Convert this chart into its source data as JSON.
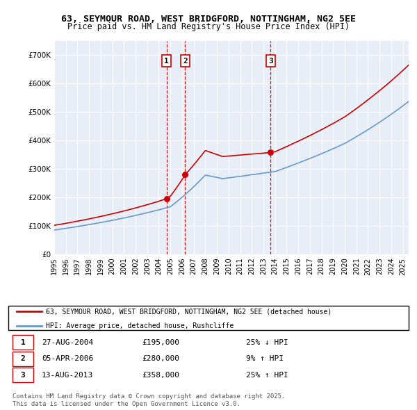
{
  "title_line1": "63, SEYMOUR ROAD, WEST BRIDGFORD, NOTTINGHAM, NG2 5EE",
  "title_line2": "Price paid vs. HM Land Registry's House Price Index (HPI)",
  "legend_label1": "63, SEYMOUR ROAD, WEST BRIDGFORD, NOTTINGHAM, NG2 5EE (detached house)",
  "legend_label2": "HPI: Average price, detached house, Rushcliffe",
  "footer": "Contains HM Land Registry data © Crown copyright and database right 2025.\nThis data is licensed under the Open Government Licence v3.0.",
  "sale_color": "#cc0000",
  "hpi_color": "#6699cc",
  "bg_color": "#e8eef8",
  "grid_color": "#ffffff",
  "sale_points": [
    {
      "date_num": 2004.66,
      "price": 195000,
      "label": "1"
    },
    {
      "date_num": 2006.27,
      "price": 280000,
      "label": "2"
    },
    {
      "date_num": 2013.62,
      "price": 358000,
      "label": "3"
    }
  ],
  "vline_dates": [
    2004.66,
    2006.27,
    2013.62
  ],
  "table_rows": [
    {
      "num": "1",
      "date": "27-AUG-2004",
      "price": "£195,000",
      "change": "25% ↓ HPI"
    },
    {
      "num": "2",
      "date": "05-APR-2006",
      "price": "£280,000",
      "change": "9% ↑ HPI"
    },
    {
      "num": "3",
      "date": "13-AUG-2013",
      "price": "£358,000",
      "change": "25% ↑ HPI"
    }
  ],
  "ylim": [
    0,
    750000
  ],
  "xlim_start": 1995.0,
  "xlim_end": 2025.5,
  "yticks": [
    0,
    100000,
    200000,
    300000,
    400000,
    500000,
    600000,
    700000
  ],
  "ytick_labels": [
    "£0",
    "£100K",
    "£200K",
    "£300K",
    "£400K",
    "£500K",
    "£600K",
    "£700K"
  ],
  "xticks": [
    1995,
    1996,
    1997,
    1998,
    1999,
    2000,
    2001,
    2002,
    2003,
    2004,
    2005,
    2006,
    2007,
    2008,
    2009,
    2010,
    2011,
    2012,
    2013,
    2014,
    2015,
    2016,
    2017,
    2018,
    2019,
    2020,
    2021,
    2022,
    2023,
    2024,
    2025
  ]
}
